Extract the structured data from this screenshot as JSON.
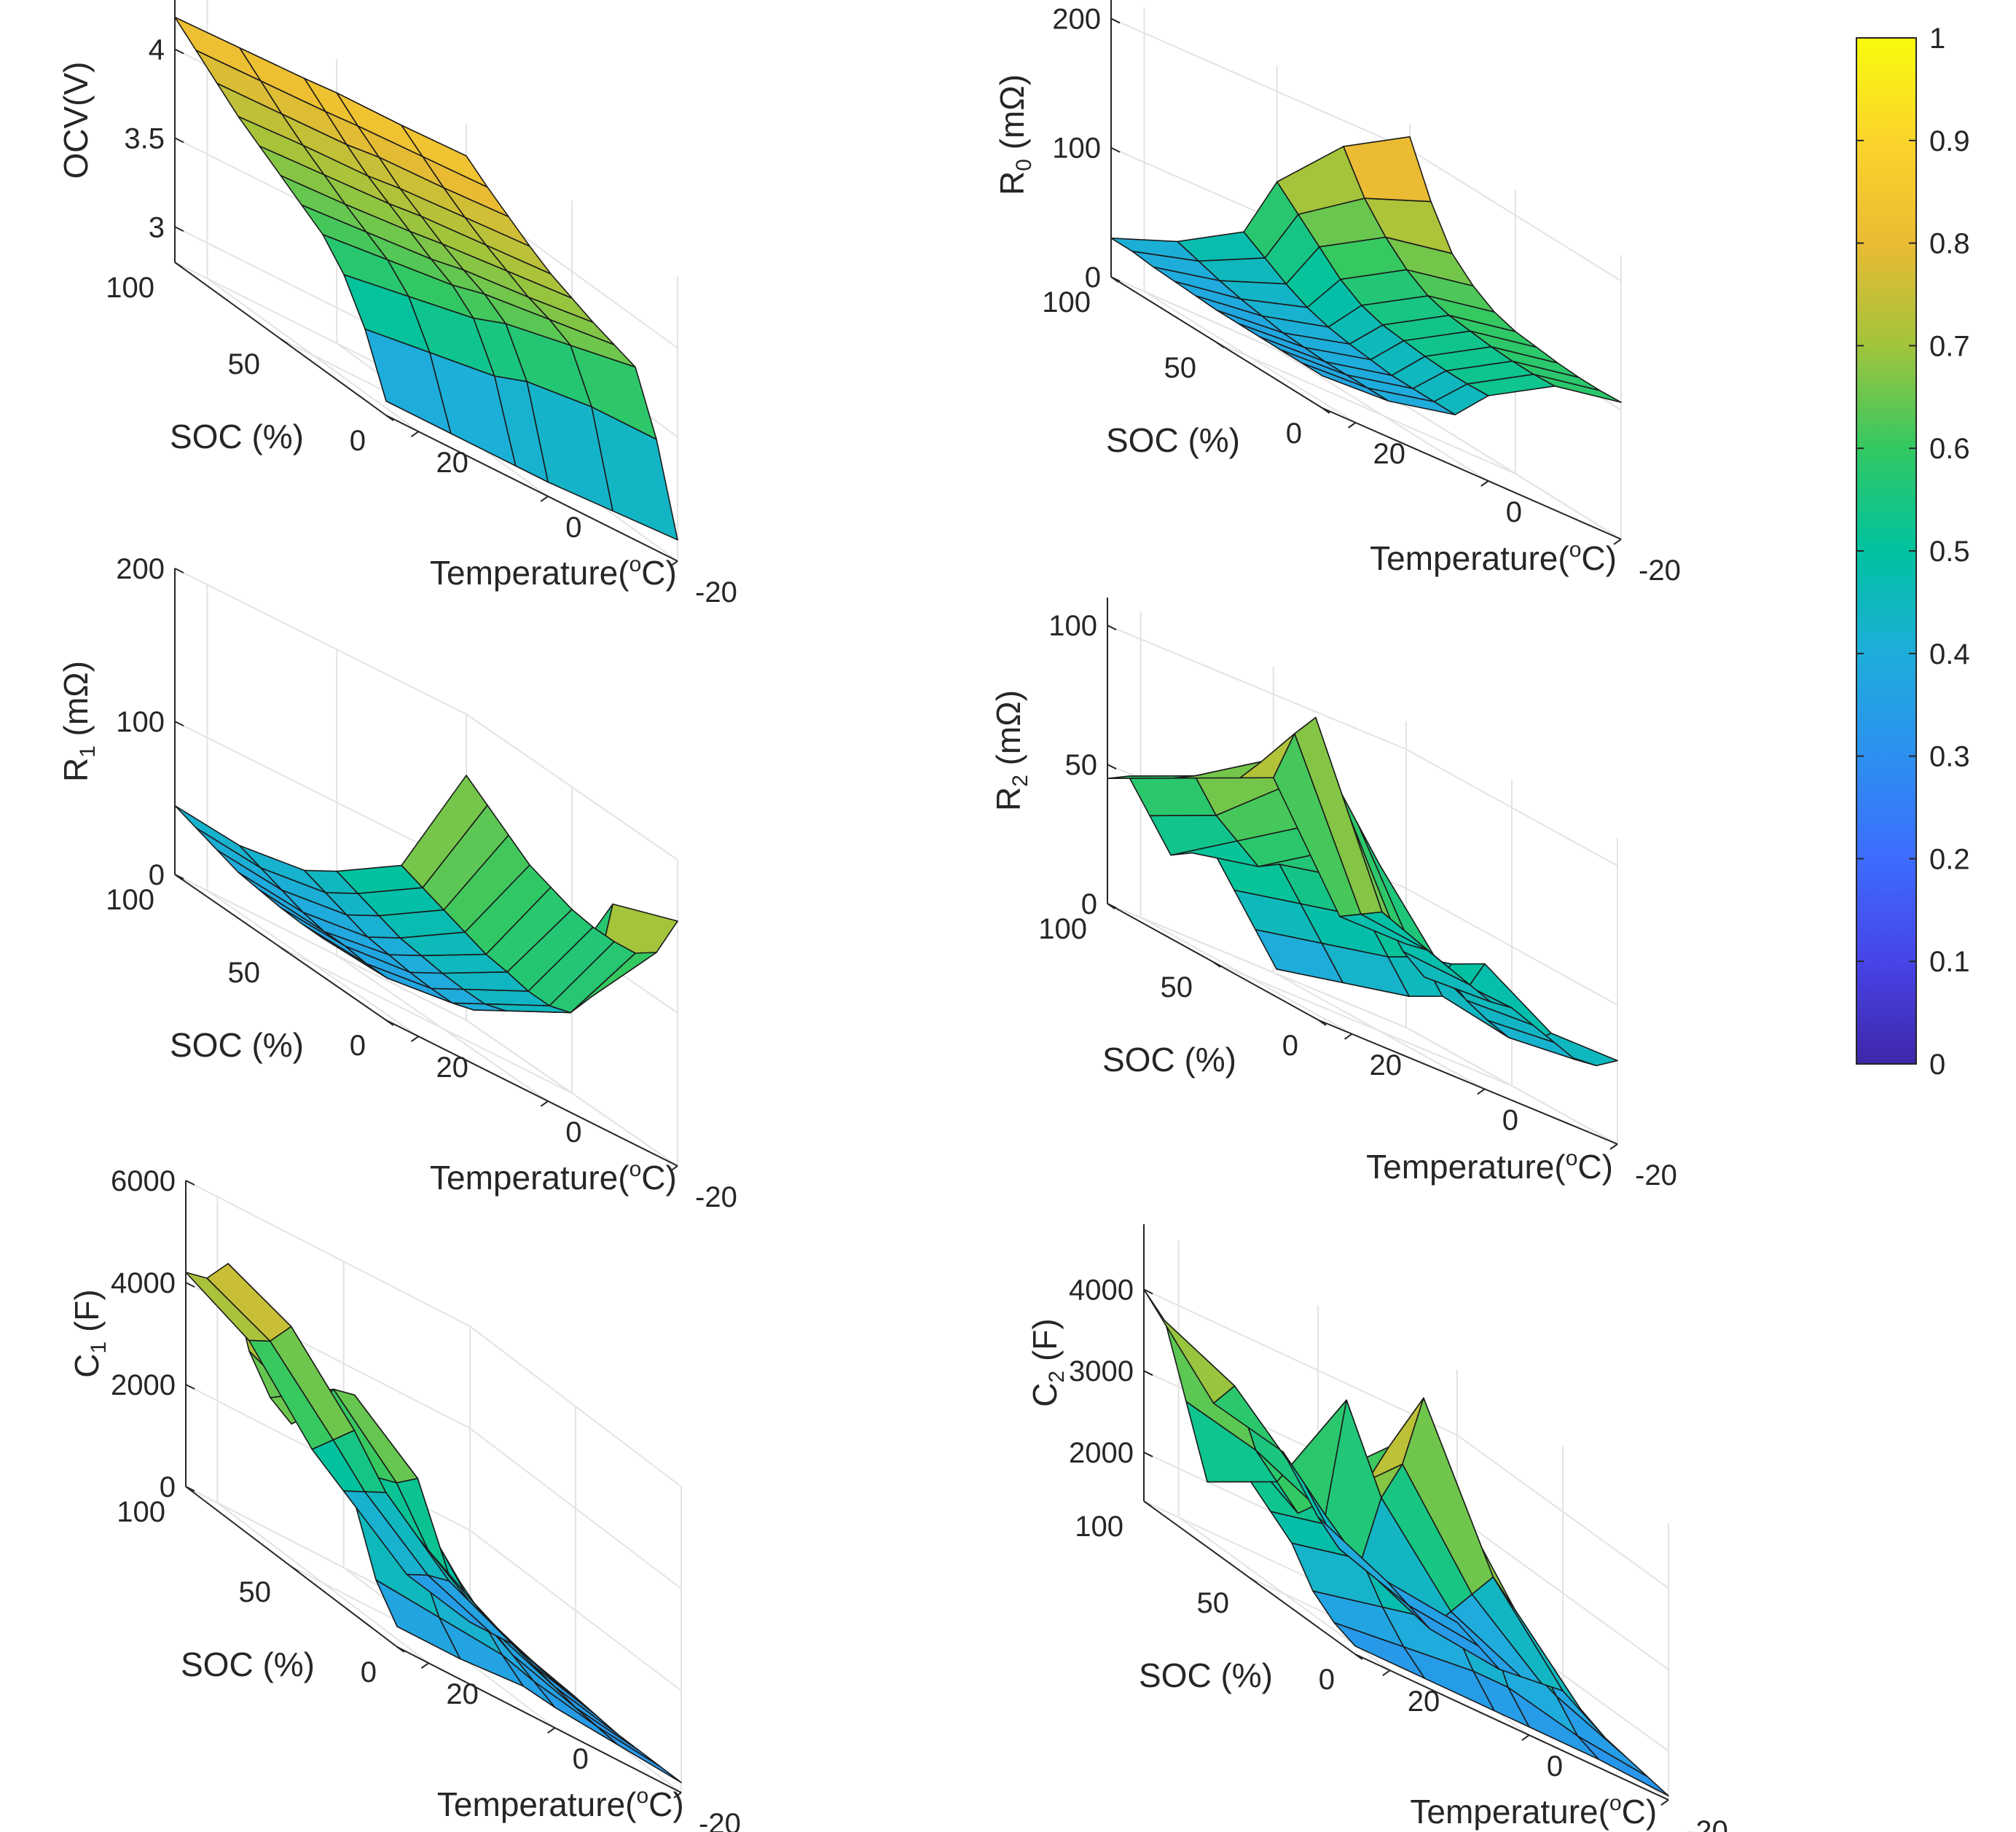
{
  "colormap": {
    "name": "parula",
    "stops": [
      "#3e26a8",
      "#4744e8",
      "#3d6cfe",
      "#2c90f0",
      "#1eaddb",
      "#00c2a0",
      "#33c862",
      "#a1c43b",
      "#eabb33",
      "#fbd42b",
      "#f9fb0e"
    ],
    "ticks": [
      "0",
      "0.1",
      "0.2",
      "0.3",
      "0.4",
      "0.5",
      "0.6",
      "0.7",
      "0.8",
      "0.9",
      "1"
    ]
  },
  "panels": [
    {
      "id": "ocv",
      "zlabel_main": "OCV(V)",
      "zlabel_sub": "",
      "zlabel_tail": "",
      "zticks": [
        "3",
        "3.5",
        "4"
      ],
      "soc_ticks": [
        "100",
        "50",
        "0"
      ],
      "temp_ticks": [
        "20",
        "0",
        "-20"
      ],
      "xlabel": "SOC (%)",
      "ylabel_main": "Temperature(",
      "ylabel_sup": "o",
      "ylabel_tail": "C)"
    },
    {
      "id": "r0",
      "zlabel_main": "R",
      "zlabel_sub": "0",
      "zlabel_tail": " (mΩ)",
      "zticks": [
        "0",
        "100",
        "200"
      ],
      "soc_ticks": [
        "100",
        "50",
        "0"
      ],
      "temp_ticks": [
        "20",
        "0",
        "-20"
      ],
      "xlabel": "SOC (%)",
      "ylabel_main": "Temperature(",
      "ylabel_sup": "o",
      "ylabel_tail": "C)"
    },
    {
      "id": "r1",
      "zlabel_main": "R",
      "zlabel_sub": "1",
      "zlabel_tail": " (mΩ)",
      "zticks": [
        "0",
        "100",
        "200"
      ],
      "soc_ticks": [
        "100",
        "50",
        "0"
      ],
      "temp_ticks": [
        "20",
        "0",
        "-20"
      ],
      "xlabel": "SOC (%)",
      "ylabel_main": "Temperature(",
      "ylabel_sup": "o",
      "ylabel_tail": "C)"
    },
    {
      "id": "r2",
      "zlabel_main": "R",
      "zlabel_sub": "2",
      "zlabel_tail": " (mΩ)",
      "zticks": [
        "0",
        "50",
        "100"
      ],
      "soc_ticks": [
        "100",
        "50",
        "0"
      ],
      "temp_ticks": [
        "20",
        "0",
        "-20"
      ],
      "xlabel": "SOC (%)",
      "ylabel_main": "Temperature(",
      "ylabel_sup": "o",
      "ylabel_tail": "C)"
    },
    {
      "id": "c1",
      "zlabel_main": "C",
      "zlabel_sub": "1",
      "zlabel_tail": " (F)",
      "zticks": [
        "0",
        "2000",
        "4000",
        "6000"
      ],
      "soc_ticks": [
        "100",
        "50",
        "0"
      ],
      "temp_ticks": [
        "20",
        "0",
        "-20"
      ],
      "xlabel": "SOC (%)",
      "ylabel_main": "Temperature(",
      "ylabel_sup": "o",
      "ylabel_tail": "C)"
    },
    {
      "id": "c2",
      "zlabel_main": "C",
      "zlabel_sub": "2",
      "zlabel_tail": " (F)",
      "zticks": [
        "2000",
        "3000",
        "4000"
      ],
      "soc_ticks": [
        "100",
        "50",
        "0"
      ],
      "temp_ticks": [
        "20",
        "0",
        "-20"
      ],
      "xlabel": "SOC (%)",
      "ylabel_main": "Temperature(",
      "ylabel_sup": "o",
      "ylabel_tail": "C)"
    }
  ],
  "chart_data": {
    "type": "surface3d",
    "x_name": "SOC (%)",
    "y_name": "Temperature (°C)",
    "soc": [
      100,
      90,
      80,
      70,
      60,
      50,
      40,
      30,
      20,
      10,
      0
    ],
    "temperature": [
      25,
      15,
      5,
      0,
      -10,
      -20
    ],
    "color_range": [
      0,
      1
    ],
    "series": [
      {
        "name": "OCV(V)",
        "zlim": [
          2.8,
          4.4
        ],
        "z": [
          [
            4.18,
            4.19,
            4.2,
            4.21,
            4.21,
            4.22
          ],
          [
            4.08,
            4.09,
            4.1,
            4.11,
            4.12,
            4.13
          ],
          [
            3.98,
            3.99,
            4.0,
            4.02,
            4.03,
            4.05
          ],
          [
            3.88,
            3.9,
            3.91,
            3.93,
            3.95,
            3.97
          ],
          [
            3.8,
            3.82,
            3.84,
            3.86,
            3.88,
            3.9
          ],
          [
            3.72,
            3.74,
            3.77,
            3.79,
            3.82,
            3.85
          ],
          [
            3.64,
            3.67,
            3.7,
            3.73,
            3.76,
            3.8
          ],
          [
            3.56,
            3.6,
            3.64,
            3.68,
            3.72,
            3.76
          ],
          [
            3.42,
            3.48,
            3.54,
            3.6,
            3.66,
            3.72
          ],
          [
            3.2,
            3.25,
            3.3,
            3.36,
            3.4,
            3.4
          ],
          [
            2.88,
            2.88,
            2.88,
            2.88,
            2.9,
            2.92
          ]
        ]
      },
      {
        "name": "R0 (mΩ)",
        "zlim": [
          0,
          220
        ],
        "z": [
          [
            30,
            50,
            80,
            130,
            180,
            210
          ],
          [
            30,
            45,
            70,
            115,
            150,
            170
          ],
          [
            28,
            40,
            60,
            100,
            130,
            140
          ],
          [
            27,
            36,
            52,
            85,
            115,
            125
          ],
          [
            26,
            33,
            47,
            75,
            105,
            115
          ],
          [
            25,
            30,
            44,
            70,
            100,
            110
          ],
          [
            25,
            29,
            42,
            68,
            98,
            108
          ],
          [
            25,
            28,
            40,
            66,
            96,
            106
          ],
          [
            25,
            28,
            40,
            65,
            95,
            105
          ],
          [
            25,
            28,
            40,
            65,
            95,
            105
          ],
          [
            25,
            28,
            40,
            66,
            96,
            106
          ]
        ]
      },
      {
        "name": "R1 (mΩ)",
        "zlim": [
          0,
          200
        ],
        "z": [
          [
            45,
            40,
            45,
            55,
            80,
            160
          ],
          [
            40,
            35,
            40,
            50,
            75,
            150
          ],
          [
            35,
            30,
            35,
            45,
            70,
            140
          ],
          [
            30,
            25,
            30,
            40,
            65,
            130
          ],
          [
            28,
            22,
            28,
            38,
            60,
            125
          ],
          [
            26,
            22,
            26,
            36,
            58,
            120
          ],
          [
            25,
            20,
            25,
            35,
            55,
            118
          ],
          [
            25,
            20,
            25,
            35,
            55,
            118
          ],
          [
            30,
            25,
            30,
            40,
            60,
            120
          ],
          [
            40,
            35,
            40,
            55,
            80,
            130
          ],
          [
            50,
            45,
            50,
            70,
            150,
            160
          ]
        ]
      },
      {
        "name": "R2 (mΩ)",
        "zlim": [
          0,
          110
        ],
        "z": [
          [
            45,
            55,
            65,
            70,
            30,
            30
          ],
          [
            50,
            60,
            75,
            90,
            35,
            32
          ],
          [
            40,
            50,
            70,
            100,
            40,
            30
          ],
          [
            30,
            45,
            60,
            80,
            30,
            28
          ],
          [
            35,
            40,
            55,
            70,
            25,
            26
          ],
          [
            40,
            45,
            50,
            60,
            30,
            28
          ],
          [
            30,
            35,
            40,
            45,
            25,
            26
          ],
          [
            20,
            25,
            30,
            35,
            22,
            24
          ],
          [
            10,
            15,
            20,
            25,
            20,
            22
          ],
          [
            15,
            20,
            25,
            30,
            22,
            24
          ],
          [
            30,
            35,
            40,
            45,
            30,
            30
          ]
        ]
      },
      {
        "name": "C1 (F)",
        "zlim": [
          0,
          6000
        ],
        "z": [
          [
            4200,
            3500,
            2000,
            1500,
            500,
            200
          ],
          [
            4400,
            3800,
            2500,
            1800,
            800,
            300
          ],
          [
            5000,
            4400,
            3000,
            2100,
            1000,
            400
          ],
          [
            3600,
            3000,
            2400,
            1800,
            900,
            350
          ],
          [
            3000,
            3800,
            2600,
            1600,
            800,
            300
          ],
          [
            2800,
            4000,
            3000,
            1400,
            700,
            300
          ],
          [
            3400,
            3000,
            2000,
            1200,
            600,
            250
          ],
          [
            2600,
            2200,
            1600,
            1000,
            500,
            200
          ],
          [
            2200,
            1800,
            1200,
            800,
            400,
            200
          ],
          [
            1000,
            900,
            800,
            600,
            350,
            200
          ],
          [
            400,
            400,
            500,
            400,
            300,
            200
          ]
        ]
      },
      {
        "name": "C2 (F)",
        "zlim": [
          1400,
          4800
        ],
        "z": [
          [
            4000,
            3000,
            2800,
            2200,
            1800,
            1700
          ],
          [
            3800,
            3400,
            2600,
            2000,
            1700,
            1600
          ],
          [
            3000,
            2800,
            2400,
            2000,
            1600,
            1500
          ],
          [
            2200,
            2600,
            4000,
            3000,
            2000,
            1600
          ],
          [
            3000,
            2400,
            3200,
            3600,
            2400,
            1700
          ],
          [
            2600,
            3000,
            3800,
            4600,
            2800,
            1800
          ],
          [
            2400,
            2600,
            3400,
            3800,
            2600,
            1700
          ],
          [
            2200,
            2400,
            2800,
            3000,
            2200,
            1600
          ],
          [
            1800,
            2000,
            2200,
            2400,
            1900,
            1550
          ],
          [
            1600,
            1700,
            1800,
            1800,
            1600,
            1500
          ],
          [
            1500,
            1500,
            1500,
            1500,
            1500,
            1450
          ]
        ]
      }
    ]
  }
}
